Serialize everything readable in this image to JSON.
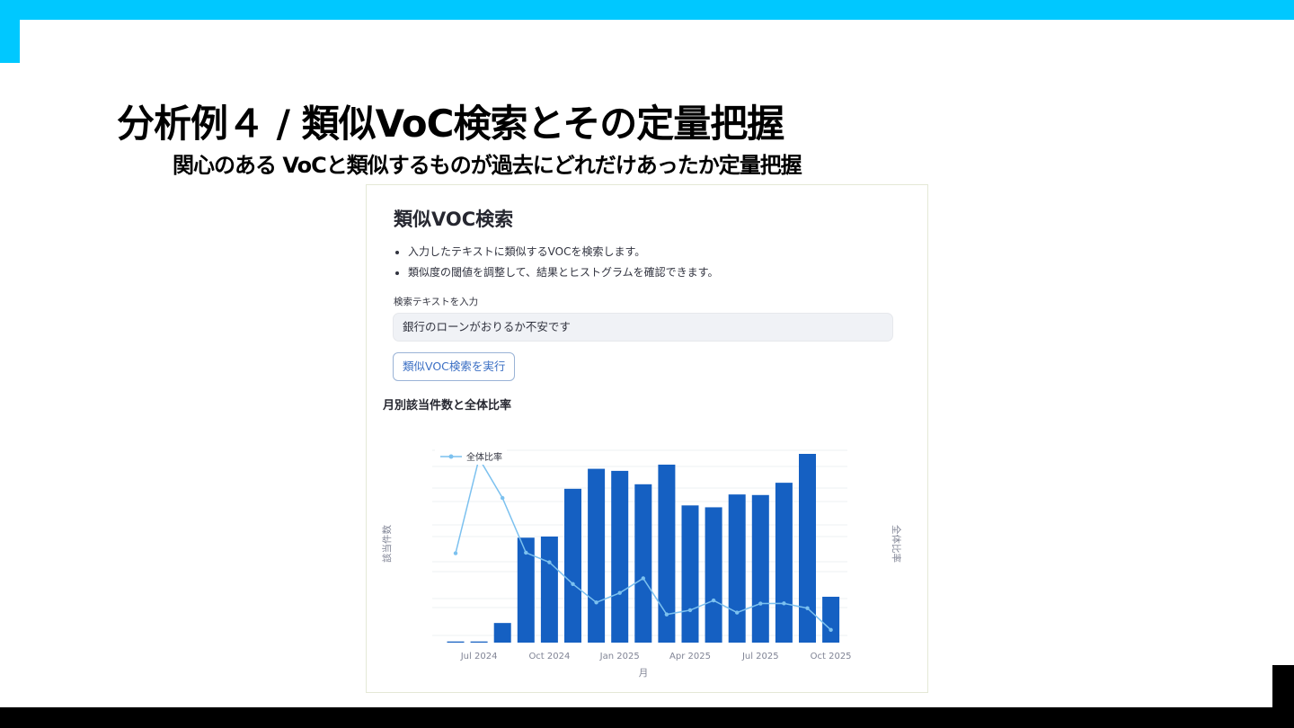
{
  "slide": {
    "title": "分析例４ / 類似VoC検索とその定量把握",
    "subtitle": "関心のある VoCと類似するものが過去にどれだけあったか定量把握",
    "colors": {
      "accent_top": "#00c8ff",
      "accent_bottom": "#000000"
    }
  },
  "app": {
    "title": "類似VOC検索",
    "bullets": [
      "入力したテキストに類似するVOCを検索します。",
      "類似度の閾値を調整して、結果とヒストグラムを確認できます。"
    ],
    "input_label": "検索テキストを入力",
    "input_value": "銀行のローンがおりるか不安です",
    "run_button": "類似VOC検索を実行",
    "chart_heading": "月別該当件数と全体比率"
  },
  "chart_data": {
    "type": "bar",
    "categories": [
      "2024-06",
      "2024-07",
      "2024-08",
      "2024-09",
      "2024-10",
      "2024-11",
      "2024-12",
      "2025-01",
      "2025-02",
      "2025-03",
      "2025-04",
      "2025-05",
      "2025-06",
      "2025-07",
      "2025-08",
      "2025-09",
      "2025-10"
    ],
    "tick_labels": [
      "Jul 2024",
      "Oct 2024",
      "Jan 2025",
      "Apr 2025",
      "Jul 2025",
      "Oct 2025"
    ],
    "tick_categories": [
      "2024-07",
      "2024-10",
      "2025-01",
      "2025-04",
      "2025-07",
      "2025-10"
    ],
    "xlabel": "月",
    "ylabel": "該当件数",
    "y2label": "全体比率",
    "bar_color": "#1560c2",
    "line_color": "#7cc1ef",
    "bars": {
      "values": [
        0.6,
        0.6,
        10.4,
        55.6,
        56.2,
        81.5,
        92.1,
        91.0,
        83.9,
        94.3,
        72.7,
        71.7,
        78.5,
        78.2,
        84.7,
        100,
        24.3
      ]
    },
    "line": {
      "name": "全体比率",
      "values": [
        48.5,
        100,
        78.5,
        48.8,
        43.6,
        31.8,
        21.8,
        27.0,
        34.9,
        15.3,
        17.6,
        22.9,
        16.3,
        21.2,
        21.3,
        18.7,
        6.9
      ]
    },
    "legend_position": "top-left",
    "grid": true
  }
}
